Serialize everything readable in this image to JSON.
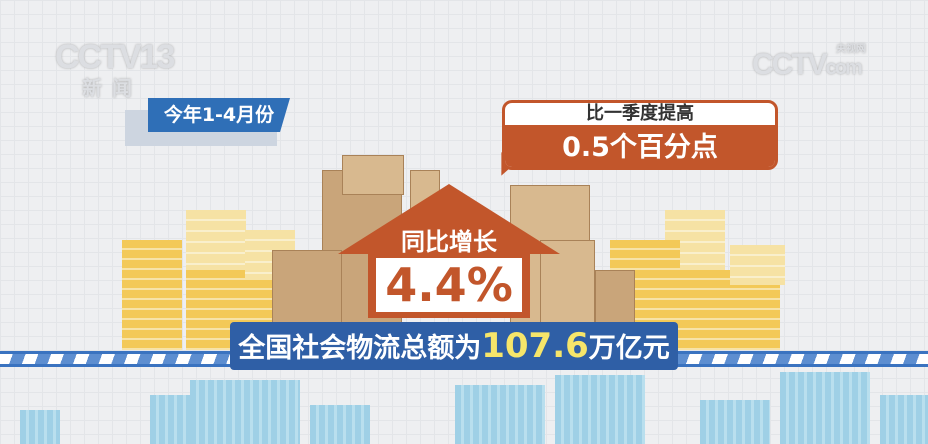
{
  "logos": {
    "channel": "CCTV13",
    "channel_sub": "新闻",
    "site": "CCTV",
    "site_domain": "com",
    "site_cn": "央视网"
  },
  "period_tag": "今年1-4月份",
  "callout": {
    "title": "比一季度提高",
    "value": "0.5个百分点"
  },
  "growth": {
    "label": "同比增长",
    "value": "4.4%"
  },
  "banner": {
    "prefix": "全国社会物流总额为",
    "value": "107.6",
    "suffix": "万亿元"
  },
  "colors": {
    "accent": "#c2562b",
    "blue": "#2f5fa6",
    "highlight": "#f6e56a"
  }
}
